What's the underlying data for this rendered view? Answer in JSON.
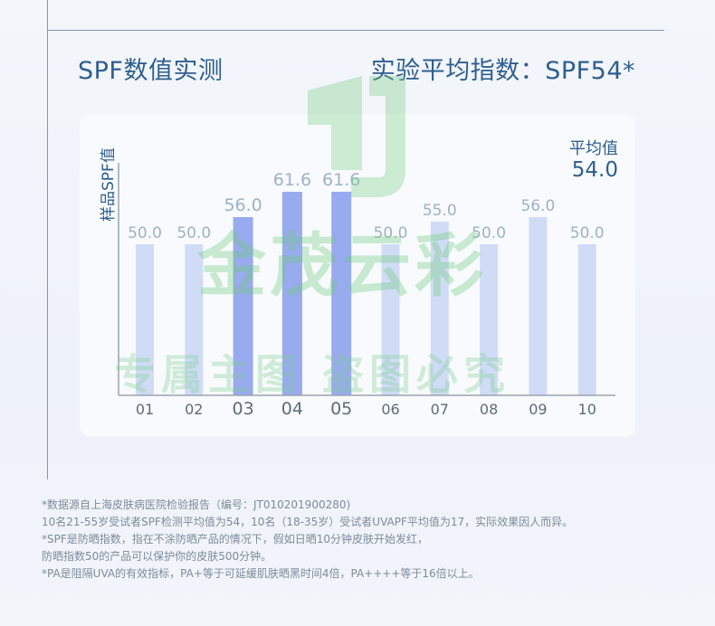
{
  "heading": {
    "left": "SPF数值实测",
    "right": "实验平均指数：SPF54*"
  },
  "chart_data": {
    "type": "bar",
    "title": "",
    "ylabel": "样品SPF值",
    "categories": [
      "01",
      "02",
      "03",
      "04",
      "05",
      "06",
      "07",
      "08",
      "09",
      "10"
    ],
    "values": [
      50.0,
      50.0,
      56.0,
      61.6,
      61.6,
      50.0,
      55.0,
      50.0,
      56.0,
      50.0
    ],
    "value_labels": [
      "50.0",
      "50.0",
      "56.0",
      "61.6",
      "61.6",
      "50.0",
      "55.0",
      "50.0",
      "56.0",
      "50.0"
    ],
    "highlighted": [
      "03",
      "04",
      "05"
    ],
    "ylim": [
      0,
      70
    ],
    "grid": false,
    "average": {
      "label": "平均值",
      "value": "54.0"
    },
    "colors": {
      "bar_light": "#c9d6f5",
      "bar_highlight": "#93a6ee",
      "axis": "#9aa3b0",
      "value_label": "#9fb1c6",
      "tick_label": "#5f6b7a"
    }
  },
  "watermark": {
    "main": "金茂云彩",
    "sub": "专属主图  盗图必究"
  },
  "footnotes": [
    "*数据源自上海皮肤病医院检验报告（编号：JT010201900280)",
    "10名21-55岁受试者SPF检测平均值为54，10名（18-35岁）受试者UVAPF平均值为17，实际效果因人而异。",
    "*SPF是防晒指数，指在不涂防晒产品的情况下，假如日晒10分钟皮肤开始发红，",
    "防晒指数50的产品可以保护你的皮肤500分钟。",
    "*PA是阻隔UVA的有效指标，PA+等于可延缓肌肤晒黑时间4倍，PA++++等于16倍以上。"
  ]
}
